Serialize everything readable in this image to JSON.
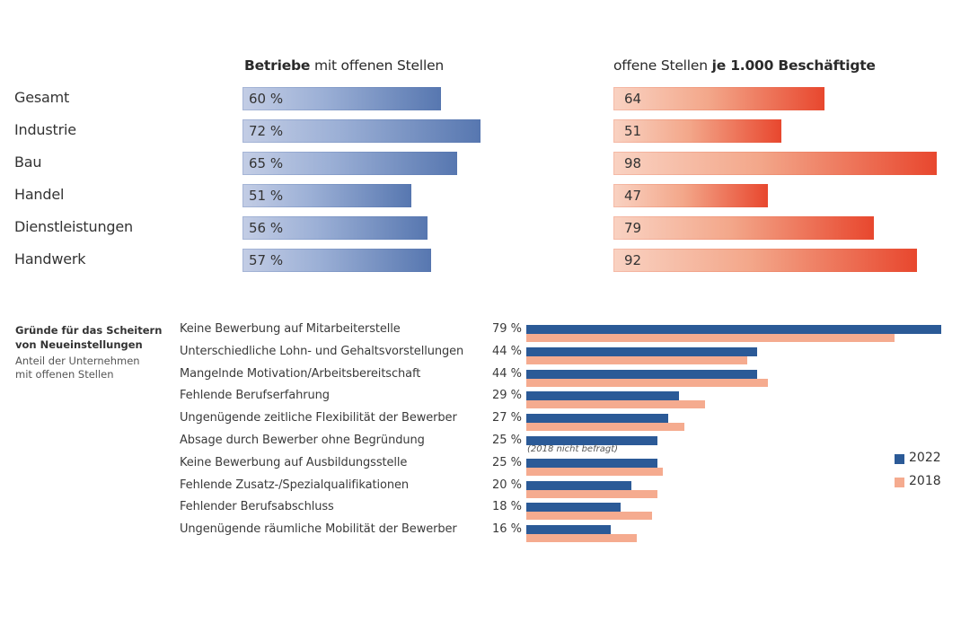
{
  "chart_data": [
    {
      "type": "bar",
      "orientation": "horizontal",
      "title": "Betriebe mit offenen Stellen",
      "title_bold_part": "Betriebe",
      "title_rest": " mit offenen Stellen",
      "categories": [
        "Gesamt",
        "Industrie",
        "Bau",
        "Handel",
        "Dienstleistungen",
        "Handwerk"
      ],
      "values": [
        60,
        72,
        65,
        51,
        56,
        57
      ],
      "value_labels": [
        "60 %",
        "72 %",
        "65 %",
        "51 %",
        "56 %",
        "57 %"
      ],
      "unit": "%",
      "color_start": "#c3cde5",
      "color_end": "#5777b0",
      "xlim": [
        0,
        72
      ]
    },
    {
      "type": "bar",
      "orientation": "horizontal",
      "title": "offene Stellen je 1.000 Beschäftigte",
      "title_rest_first": "offene Stellen ",
      "title_bold_part": "je 1.000 Beschäftigte",
      "categories": [
        "Gesamt",
        "Industrie",
        "Bau",
        "Handel",
        "Dienstleistungen",
        "Handwerk"
      ],
      "values": [
        64,
        51,
        98,
        47,
        79,
        92
      ],
      "value_labels": [
        "64",
        "51",
        "98",
        "47",
        "79",
        "92"
      ],
      "color_start": "#f9d2c2",
      "color_end": "#e8472e",
      "xlim": [
        0,
        98
      ]
    },
    {
      "type": "bar",
      "orientation": "horizontal",
      "title": "Gründe für das Scheitern von Neueinstellungen",
      "title_lines": [
        "Gründe für das Scheitern",
        "von Neueinstellungen"
      ],
      "subtitle_lines": [
        "Anteil der Unternehmen",
        "mit offenen Stellen"
      ],
      "categories": [
        "Keine Bewerbung auf Mitarbeiterstelle",
        "Unterschiedliche Lohn- und Gehaltsvorstellungen",
        "Mangelnde Motivation/Arbeitsbereitschaft",
        "Fehlende Berufserfahrung",
        "Ungenügende zeitliche Flexibilität der Bewerber",
        "Absage durch Bewerber ohne Begründung",
        "Keine Bewerbung auf Ausbildungsstelle",
        "Fehlende Zusatz-/Spezialqualifikationen",
        "Fehlender Berufsabschluss",
        "Ungenügende räumliche Mobilität der Bewerber"
      ],
      "value_labels": [
        "79 %",
        "44 %",
        "44 %",
        "29 %",
        "27 %",
        "25 %",
        "25 %",
        "20 %",
        "18 %",
        "16 %"
      ],
      "series": [
        {
          "name": "2022",
          "color": "#2b5a97",
          "values": [
            79,
            44,
            44,
            29,
            27,
            25,
            25,
            20,
            18,
            16
          ]
        },
        {
          "name": "2018",
          "color": "#f5ab8f",
          "values": [
            70,
            42,
            46,
            34,
            30,
            null,
            26,
            25,
            24,
            21
          ]
        }
      ],
      "annotations": [
        {
          "category_index": 5,
          "text": "(2018 nicht befragt)"
        }
      ],
      "legend": {
        "position": "right",
        "entries": [
          "2022",
          "2018"
        ]
      },
      "unit": "%",
      "xlim": [
        0,
        79
      ]
    }
  ]
}
